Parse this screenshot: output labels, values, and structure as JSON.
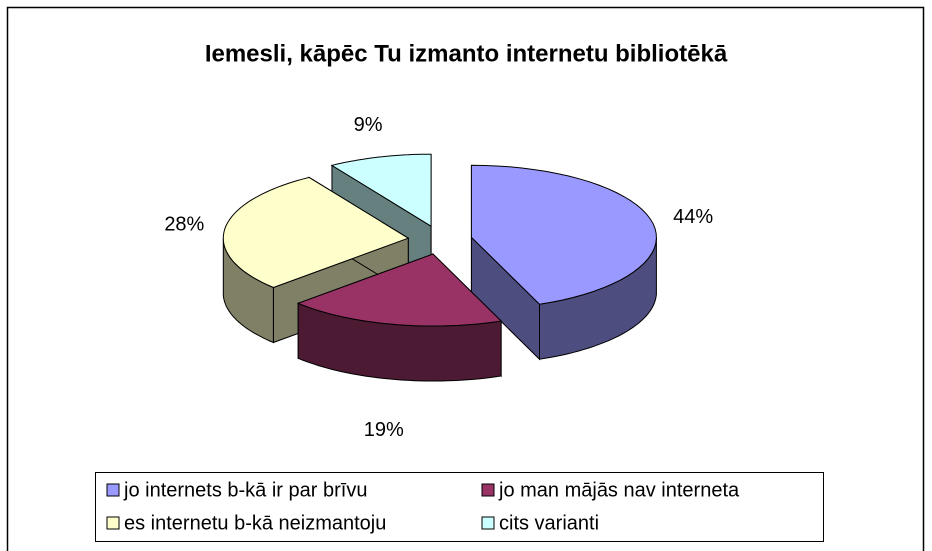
{
  "chart_data": {
    "type": "pie",
    "title": "Iemesli, kāpēc Tu izmanto internetu bibliotēkā",
    "categories": [
      "jo internets b-kā ir par brīvu",
      "jo man mājās nav interneta",
      "es internetu b-kā neizmantoju",
      "cits varianti"
    ],
    "values": [
      44,
      19,
      28,
      9
    ],
    "value_labels": [
      "44%",
      "19%",
      "28%",
      "9%"
    ],
    "colors": [
      "#9999ff",
      "#993366",
      "#ffffcc",
      "#ccffff"
    ]
  }
}
